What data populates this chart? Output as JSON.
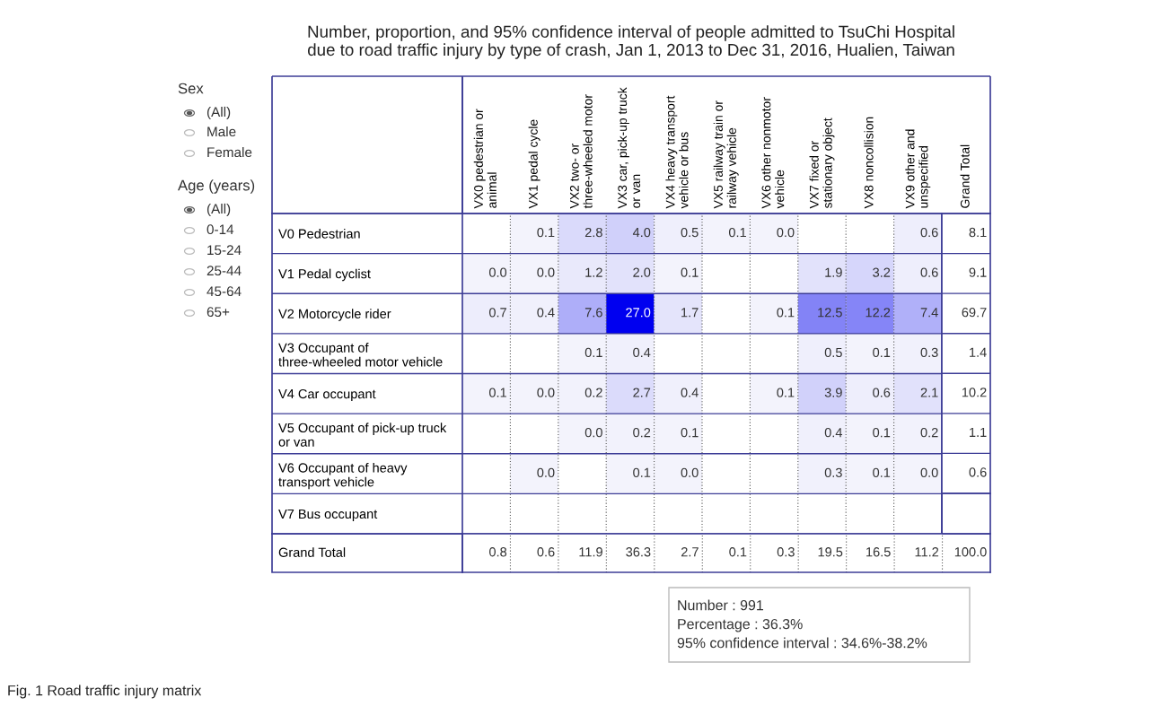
{
  "chart_data": [
    {
      "type": "heatmap",
      "title": "Number, proportion, and 95% confidence interval of people admitted to TsuChi Hospital\ndue to road traffic injury by type of crash, Jan 1, 2013 to Dec 31, 2016, Hualien, Taiwan",
      "categories": [
        "VX0 pedestrian or\nanimal",
        "VX1 pedal cycle",
        "VX2 two- or\nthree-wheeled motor",
        "VX3 car, pick-up truck\nor van",
        "VX4 heavy transport\nvehicle or bus",
        "VX5 railway train or\nrailway vehicle",
        "VX6 other nonmotor\nvehicle",
        "VX7 fixed or\nstationary object",
        "VX8 noncollision",
        "VX9 other and\nunspecified"
      ],
      "y_categories": [
        "V0 Pedestrian",
        "V1 Pedal cyclist",
        "V2 Motorcycle rider",
        "V3 Occupant of\nthree-wheeled motor vehicle",
        "V4 Car occupant",
        "V5 Occupant of pick-up truck\nor van",
        "V6 Occupant of heavy\ntransport vehicle",
        "V7 Bus occupant"
      ],
      "cells": [
        [
          null,
          0.1,
          2.8,
          4.0,
          0.5,
          0.1,
          0.0,
          null,
          null,
          0.6
        ],
        [
          0.0,
          0.0,
          1.2,
          2.0,
          0.1,
          null,
          null,
          1.9,
          3.2,
          0.6
        ],
        [
          0.7,
          0.4,
          7.6,
          27.0,
          1.7,
          null,
          0.1,
          12.5,
          12.2,
          7.4
        ],
        [
          null,
          null,
          0.1,
          0.4,
          null,
          null,
          null,
          0.5,
          0.1,
          0.3
        ],
        [
          0.1,
          0.0,
          0.2,
          2.7,
          0.4,
          null,
          0.1,
          3.9,
          0.6,
          2.1
        ],
        [
          null,
          null,
          0.0,
          0.2,
          0.1,
          null,
          null,
          0.4,
          0.1,
          0.2
        ],
        [
          null,
          0.0,
          null,
          0.1,
          0.0,
          null,
          null,
          0.3,
          0.1,
          0.0
        ],
        [
          null,
          null,
          null,
          null,
          null,
          null,
          null,
          null,
          null,
          null
        ]
      ],
      "cell_labels": [
        [
          null,
          "0.1",
          "2.8",
          "4.0",
          "0.5",
          "0.1",
          "0.0",
          null,
          null,
          "0.6"
        ],
        [
          "0.0",
          "0.0",
          "1.2",
          "2.0",
          "0.1",
          null,
          null,
          "1.9",
          "3.2",
          "0.6"
        ],
        [
          "0.7",
          "0.4",
          "7.6",
          "27.0",
          "1.7",
          null,
          "0.1",
          "12.5",
          "12.2",
          "7.4"
        ],
        [
          null,
          null,
          "0.1",
          "0.4",
          null,
          null,
          null,
          "0.5",
          "0.1",
          "0.3"
        ],
        [
          "0.1",
          "0.0",
          "0.2",
          "2.7",
          "0.4",
          null,
          "0.1",
          "3.9",
          "0.6",
          "2.1"
        ],
        [
          null,
          null,
          "0.0",
          "0.2",
          "0.1",
          null,
          null,
          "0.4",
          "0.1",
          "0.2"
        ],
        [
          null,
          "0.0",
          null,
          "0.1",
          "0.0",
          null,
          null,
          "0.3",
          "0.1",
          "0.0"
        ],
        [
          null,
          null,
          null,
          null,
          null,
          null,
          null,
          null,
          null,
          null
        ]
      ],
      "colors": [
        "#f3f3fc",
        "#0000f0"
      ],
      "grid": true,
      "annotations": [
        "Sex",
        "(All)",
        "Male",
        "Female",
        "Age (years)",
        "(All)",
        "0-14",
        "15-24",
        "25-44",
        "45-64",
        "65+",
        "Number : 991",
        "Percentage : 36.3%",
        "95% confidence interval : 34.6%-38.2%",
        "Fig. 1 Road traffic injury matrix",
        "Grand Total"
      ]
    },
    {
      "type": "heatmap",
      "categories": [
        "Grand Total"
      ],
      "y_categories": [
        null,
        null,
        null,
        null,
        null,
        null,
        null
      ],
      "cells": [
        [
          8.1
        ],
        [
          9.1
        ],
        [
          69.7
        ],
        [
          1.4
        ],
        [
          10.2
        ],
        [
          1.1
        ],
        [
          0.6
        ]
      ],
      "cell_labels": [
        [
          "8.1"
        ],
        [
          "9.1"
        ],
        [
          "69.7"
        ],
        [
          "1.4"
        ],
        [
          "10.2"
        ],
        [
          "1.1"
        ],
        [
          "0.6"
        ]
      ],
      "colors": [
        "#ffffff",
        "#ffffff"
      ],
      "grid": true
    },
    {
      "type": "heatmap",
      "categories": [
        null,
        null,
        null,
        null,
        null,
        null,
        null,
        null,
        null,
        null,
        null
      ],
      "y_categories": [
        null
      ],
      "cells": [
        [
          0.8,
          0.6,
          11.9,
          36.3,
          2.7,
          0.1,
          0.3,
          19.5,
          16.5,
          11.2,
          100.0
        ]
      ],
      "cell_labels": [
        [
          "0.8",
          "0.6",
          "11.9",
          "36.3",
          "2.7",
          "0.1",
          "0.3",
          "19.5",
          "16.5",
          "11.2",
          "100.0"
        ]
      ],
      "colors": [
        "#ffffff",
        "#ffffff"
      ],
      "grid": true
    }
  ]
}
